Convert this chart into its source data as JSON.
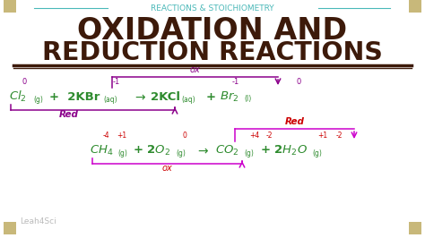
{
  "bg_color": "#ffffff",
  "border_color": "#c8b87a",
  "subtitle": "REACTIONS & STOICHIOMETRY",
  "subtitle_color": "#4ab8b8",
  "title_line1": "OXIDATION AND",
  "title_line2": "REDUCTION REACTIONS",
  "title_color": "#3d1a0a",
  "reaction1_color": "#2e8b2e",
  "reaction1_ox_color": "#8b008b",
  "reaction2_color": "#2e8b2e",
  "reaction2_ox_color": "#cc0000",
  "reaction2_red_color": "#cc0000",
  "watermark": "Leah4Sci",
  "watermark_color": "#aaaaaa"
}
